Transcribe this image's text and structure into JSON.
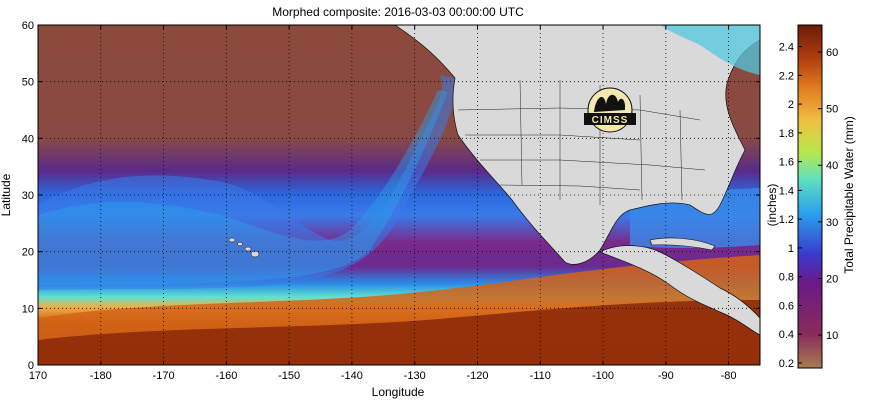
{
  "title": "Morphed composite: 2016-03-03 00:00:00 UTC",
  "map": {
    "xlabel": "Longitude",
    "ylabel": "Latitude",
    "lon_ticks": [
      "170",
      "-180",
      "-170",
      "-160",
      "-150",
      "-140",
      "-130",
      "-120",
      "-110",
      "-100",
      "-90",
      "-80"
    ],
    "lat_ticks": [
      "0",
      "10",
      "20",
      "30",
      "40",
      "50",
      "60"
    ],
    "lon_range": [
      170,
      285
    ],
    "lat_range": [
      0,
      60
    ],
    "grid": true
  },
  "logo_text": "CIMSS",
  "colorbar": {
    "label_mm": "Total Precipitable Water (mm)",
    "label_in": "(inches)",
    "inch_ticks": [
      "2.4",
      "2.2",
      "2",
      "1.8",
      "1.6",
      "1.4",
      "1.2",
      "1",
      "0.8",
      "0.6",
      "0.4",
      "0.2"
    ],
    "mm_ticks": [
      "60",
      "50",
      "40",
      "30",
      "20",
      "10"
    ],
    "colors": [
      "#a67c52",
      "#8a2a5a",
      "#6a1a8a",
      "#3a3acc",
      "#2aa0ee",
      "#5fe0c0",
      "#b8e84a",
      "#f0c040",
      "#e07a20",
      "#b0400e",
      "#6e1a08"
    ]
  }
}
